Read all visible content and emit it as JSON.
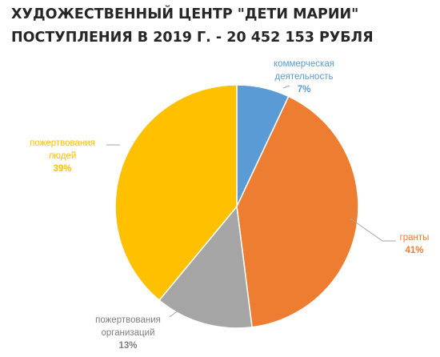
{
  "chart_data": {
    "type": "pie",
    "title": "ХУДОЖЕСТВЕННЫЙ ЦЕНТР \"ДЕТИ МАРИИ\"",
    "subtitle": "ПОСТУПЛЕНИЯ  В 2019 Г. - 20 452 153 РУБЛЯ",
    "slices": [
      {
        "label_lines": [
          "коммерческая",
          "деятельность"
        ],
        "value": 7,
        "pct_label": "7%",
        "color": "#5b9bd5"
      },
      {
        "label_lines": [
          "гранты"
        ],
        "value": 41,
        "pct_label": "41%",
        "color": "#ed7d31"
      },
      {
        "label_lines": [
          "пожертвования",
          "организаций"
        ],
        "value": 13,
        "pct_label": "13%",
        "color": "#a5a5a5"
      },
      {
        "label_lines": [
          "пожертвования",
          "людей"
        ],
        "value": 39,
        "pct_label": "39%",
        "color": "#ffc000"
      }
    ],
    "start_angle_deg": 0,
    "direction": "clockwise",
    "legend": "none"
  }
}
